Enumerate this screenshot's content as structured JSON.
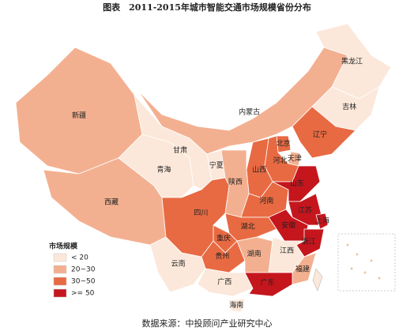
{
  "title": "图表　2011-2015年城市智能交通市场规模省份分布",
  "legend": {
    "title": "市场规模",
    "items": [
      {
        "label": "< 20",
        "color": "#fbe8da"
      },
      {
        "label": "20~30",
        "color": "#f3b090"
      },
      {
        "label": "30~50",
        "color": "#e86a42"
      },
      {
        "label": ">= 50",
        "color": "#c5161d"
      }
    ]
  },
  "provinces": [
    {
      "name": "新疆",
      "level": 1
    },
    {
      "name": "西藏",
      "level": 1
    },
    {
      "name": "青海",
      "level": 0
    },
    {
      "name": "甘肃",
      "level": 0
    },
    {
      "name": "内蒙古",
      "level": 1
    },
    {
      "name": "黑龙江",
      "level": 0
    },
    {
      "name": "吉林",
      "level": 0
    },
    {
      "name": "辽宁",
      "level": 2
    },
    {
      "name": "北京",
      "level": 2
    },
    {
      "name": "天津",
      "level": 1
    },
    {
      "name": "河北",
      "level": 2
    },
    {
      "name": "山西",
      "level": 2
    },
    {
      "name": "宁夏",
      "level": 0
    },
    {
      "name": "陕西",
      "level": 1
    },
    {
      "name": "河南",
      "level": 2
    },
    {
      "name": "山东",
      "level": 3
    },
    {
      "name": "江苏",
      "level": 3
    },
    {
      "name": "上海",
      "level": 3
    },
    {
      "name": "安徽",
      "level": 3
    },
    {
      "name": "浙江",
      "level": 3
    },
    {
      "name": "湖北",
      "level": 2
    },
    {
      "name": "重庆",
      "level": 2
    },
    {
      "name": "四川",
      "level": 2
    },
    {
      "name": "贵州",
      "level": 2
    },
    {
      "name": "湖南",
      "level": 1
    },
    {
      "name": "江西",
      "level": 0
    },
    {
      "name": "福建",
      "level": 1
    },
    {
      "name": "云南",
      "level": 0
    },
    {
      "name": "广西",
      "level": 0
    },
    {
      "name": "广东",
      "level": 3
    },
    {
      "name": "海南",
      "level": 0
    }
  ],
  "source": "数据来源：中投顾问产业研究中心"
}
